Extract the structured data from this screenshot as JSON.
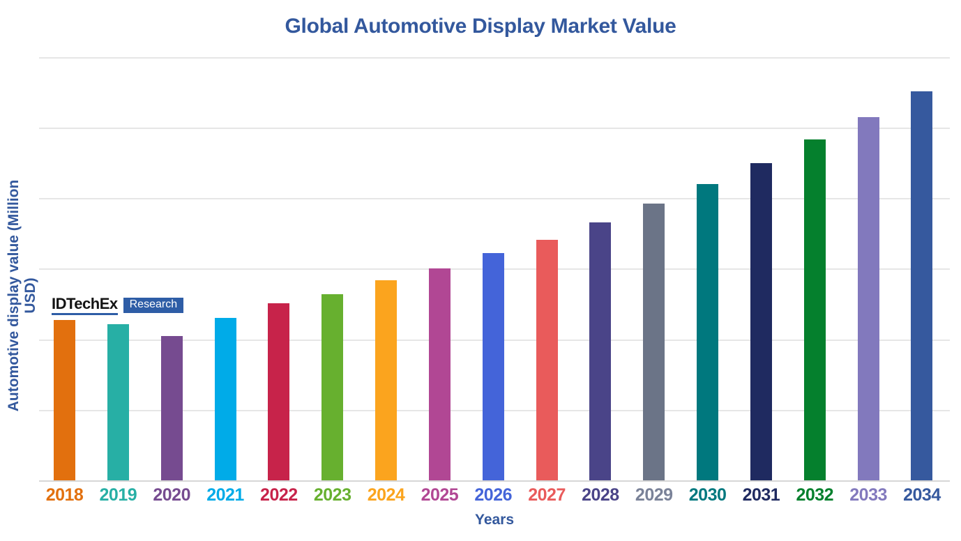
{
  "header": {
    "title": "Global Automotive Display Market Value",
    "title_color": "#33589D"
  },
  "axes": {
    "y_label": "Automotive display value (Million USD)",
    "x_label": "Years",
    "label_color": "#33589D"
  },
  "watermark": {
    "brand": "IDTechEx",
    "brand_color": "#141414",
    "underline_color": "#2E5DA6",
    "box_label": "Research",
    "box_color": "#2E5DA6",
    "box_text_color": "#FFFFFF"
  },
  "chart_data": {
    "type": "bar",
    "title": "Global Automotive Display Market Value",
    "xlabel": "Years",
    "ylabel": "Automotive display value (Million USD)",
    "categories": [
      "2018",
      "2019",
      "2020",
      "2021",
      "2022",
      "2023",
      "2024",
      "2025",
      "2026",
      "2027",
      "2028",
      "2029",
      "2030",
      "2031",
      "2032",
      "2033",
      "2034"
    ],
    "values": [
      2.27,
      2.21,
      2.05,
      2.3,
      2.51,
      2.64,
      2.84,
      3.0,
      3.22,
      3.41,
      3.66,
      3.92,
      4.2,
      4.5,
      4.83,
      5.15,
      5.51
    ],
    "y_axis_unlabeled": true,
    "value_unit": "gridline spacings (y-axis has no tick labels; 1.0 = one horizontal gridline interval)",
    "ylim": [
      0,
      6
    ],
    "grid": true,
    "legend": false,
    "bar_colors": [
      "#E2700E",
      "#27AFA5",
      "#764B90",
      "#00ABE8",
      "#C7234A",
      "#67B02F",
      "#FBA41E",
      "#B14794",
      "#4464D9",
      "#E95B5B",
      "#4A4488",
      "#6B7487",
      "#00787E",
      "#1F2A60",
      "#05802D",
      "#8279BD",
      "#36599E"
    ],
    "tick_label_colors": [
      "#E2700E",
      "#27AFA5",
      "#764B90",
      "#00ABE8",
      "#C7234A",
      "#67B02F",
      "#FBA41E",
      "#B14794",
      "#4464D9",
      "#E95B5B",
      "#4A4488",
      "#7A8298",
      "#00787E",
      "#1F2A60",
      "#05802D",
      "#8279BD",
      "#36599E"
    ]
  }
}
